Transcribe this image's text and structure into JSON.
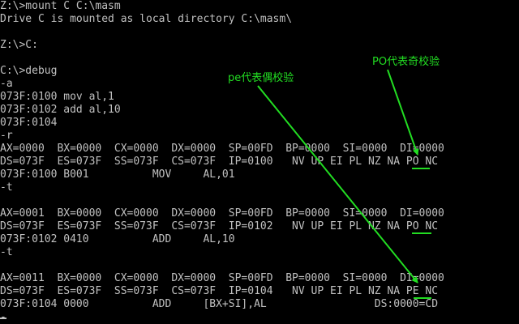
{
  "terminal": {
    "lines": [
      "Z:\\>mount C C:\\masm",
      "Drive C is mounted as local directory C:\\masm\\",
      "",
      "Z:\\>C:",
      "",
      "C:\\>debug",
      "-a",
      "073F:0100 mov al,1",
      "073F:0102 add al,10",
      "073F:0104",
      "-r",
      "AX=0000  BX=0000  CX=0000  DX=0000  SP=00FD  BP=0000  SI=0000  DI=0000",
      "DS=073F  ES=073F  SS=073F  CS=073F  IP=0100   NV UP EI PL NZ NA PO NC",
      "073F:0100 B001          MOV     AL,01",
      "-t",
      "",
      "AX=0001  BX=0000  CX=0000  DX=0000  SP=00FD  BP=0000  SI=0000  DI=0000",
      "DS=073F  ES=073F  SS=073F  CS=073F  IP=0102   NV UP EI PL NZ NA PO NC",
      "073F:0102 0410          ADD     AL,10",
      "-t",
      "",
      "AX=0011  BX=0000  CX=0000  DX=0000  SP=00FD  BP=0000  SI=0000  DI=0000",
      "DS=073F  ES=073F  SS=073F  CS=073F  IP=0104   NV UP EI PL NZ NA PE NC",
      "073F:0104 0000          ADD     [BX+SI],AL                 DS:0000=CD",
      "-"
    ]
  },
  "annotations": {
    "pe_label": "pe代表偶校验",
    "po_label": "PO代表奇校验",
    "color": "#22dd22"
  }
}
